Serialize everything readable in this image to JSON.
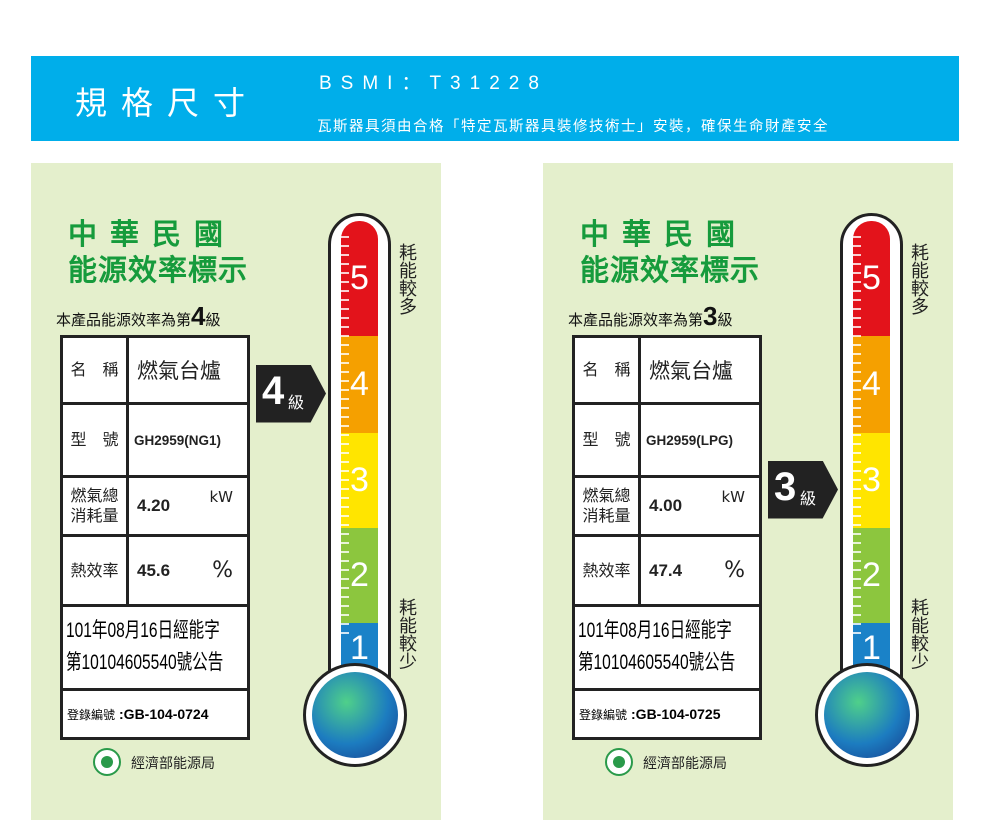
{
  "header": {
    "title": "規格尺寸",
    "bsmi": "BSMI：T31228",
    "notice": "瓦斯器具須由合格「特定瓦斯器具裝修技術士」安裝，確保生命財產安全",
    "bg_color": "#00aeea"
  },
  "labels": [
    {
      "title1": "中華民國",
      "title2": "能源效率標示",
      "grade_prefix": "本產品能源效率為第",
      "grade": "4",
      "grade_suffix": "級",
      "name_label": "名　稱",
      "name_value": "燃氣台爐",
      "model_label": "型　號",
      "model_value": "GH2959(NG1)",
      "gas_label_1": "燃氣總",
      "gas_label_2": "消耗量",
      "gas_value": "4.20",
      "gas_unit": "kW",
      "eff_label": "熱效率",
      "eff_value": "45.6",
      "eff_unit": "%",
      "approval_1": "101年08月16日經能字",
      "approval_2": "第10104605540號公告",
      "reg_label": "登錄編號",
      "reg_value": ":GB-104-0724",
      "agency": "經濟部能源局",
      "more": "耗能較多",
      "less": "耗能較少",
      "level_unit": "級"
    },
    {
      "title1": "中華民國",
      "title2": "能源效率標示",
      "grade_prefix": "本產品能源效率為第",
      "grade": "3",
      "grade_suffix": "級",
      "name_label": "名　稱",
      "name_value": "燃氣台爐",
      "model_label": "型　號",
      "model_value": "GH2959(LPG)",
      "gas_label_1": "燃氣總",
      "gas_label_2": "消耗量",
      "gas_value": "4.00",
      "gas_unit": "kW",
      "eff_label": "熱效率",
      "eff_value": "47.4",
      "eff_unit": "%",
      "approval_1": "101年08月16日經能字",
      "approval_2": "第10104605540號公告",
      "reg_label": "登錄編號",
      "reg_value": ":GB-104-0725",
      "agency": "經濟部能源局",
      "more": "耗能較多",
      "less": "耗能較少",
      "level_unit": "級"
    }
  ],
  "scale": {
    "levels": [
      "5",
      "4",
      "3",
      "2",
      "1"
    ],
    "colors": [
      "#e3131b",
      "#f5a000",
      "#ffe500",
      "#8cc63e",
      "#1a82c8"
    ]
  }
}
